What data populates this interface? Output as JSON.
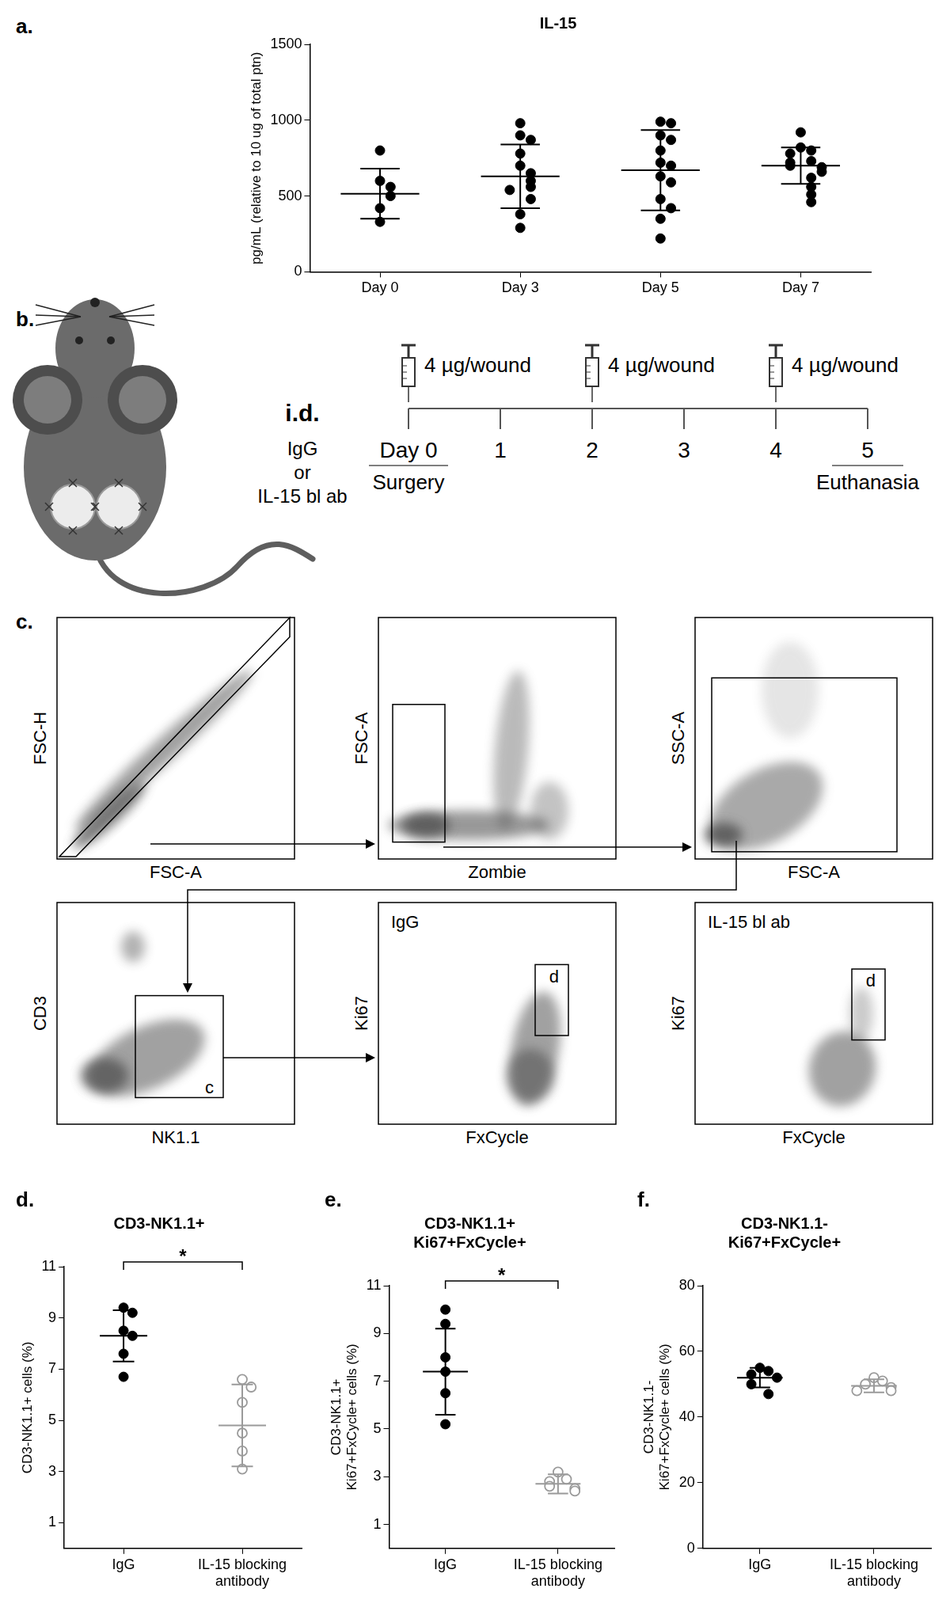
{
  "chart_data": [
    {
      "panel": "a.",
      "type": "scatter",
      "title": "IL-15",
      "y_label": "pg/mL (relative to 10 ug of total ptn)",
      "ylim": [
        0,
        1500
      ],
      "yticks": [
        0,
        500,
        1000,
        1500
      ],
      "grid": false,
      "series": [
        {
          "name": "Day 0",
          "color": "#000000",
          "marker": "circle",
          "values": [
            800,
            600,
            560,
            500,
            420,
            330
          ],
          "mean": 515,
          "sd": 165
        },
        {
          "name": "Day 3",
          "color": "#000000",
          "marker": "circle",
          "values": [
            980,
            900,
            870,
            780,
            700,
            650,
            600,
            560,
            540,
            480,
            380,
            290
          ],
          "mean": 630,
          "sd": 210
        },
        {
          "name": "Day 5",
          "color": "#000000",
          "marker": "circle",
          "values": [
            990,
            980,
            900,
            870,
            800,
            720,
            700,
            630,
            590,
            480,
            420,
            350,
            220
          ],
          "mean": 670,
          "sd": 265
        },
        {
          "name": "Day 7",
          "color": "#000000",
          "marker": "circle",
          "values": [
            920,
            820,
            800,
            780,
            730,
            720,
            700,
            690,
            660,
            620,
            560,
            510,
            460
          ],
          "mean": 700,
          "sd": 120
        }
      ]
    },
    {
      "panel": "d.",
      "type": "scatter",
      "title": "CD3-NK1.1+",
      "y_label": "CD3-NK1.1+ cells (%)",
      "ylim": [
        0,
        11
      ],
      "yticks": [
        1,
        3,
        5,
        7,
        9,
        11
      ],
      "grid": false,
      "significance": "*",
      "series": [
        {
          "name": "IgG",
          "color": "#000000",
          "marker": "circle",
          "values": [
            9.4,
            9.2,
            8.5,
            8.3,
            7.6,
            6.7
          ],
          "mean": 8.3,
          "sd": 1.0
        },
        {
          "name": "IL-15 blocking antibody",
          "color": "#9a9a9a",
          "marker": "open_circle",
          "values": [
            6.6,
            6.3,
            5.7,
            4.5,
            3.8,
            3.1
          ],
          "mean": 4.8,
          "sd": 1.6
        }
      ]
    },
    {
      "panel": "e.",
      "type": "scatter",
      "title": [
        "CD3-NK1.1+",
        "Ki67+FxCycle+"
      ],
      "y_label": [
        "CD3-NK1.1+",
        "Ki67+FxCycle+ cells (%)"
      ],
      "ylim": [
        0,
        11
      ],
      "yticks": [
        1,
        3,
        5,
        7,
        9,
        11
      ],
      "grid": false,
      "significance": "*",
      "series": [
        {
          "name": "IgG",
          "color": "#000000",
          "marker": "circle",
          "values": [
            10.0,
            9.4,
            8.0,
            7.4,
            6.5,
            5.2
          ],
          "mean": 7.4,
          "sd": 1.8
        },
        {
          "name": "IL-15 blocking antibody",
          "color": "#9a9a9a",
          "marker": "open_circle",
          "values": [
            3.2,
            2.9,
            2.8,
            2.6,
            2.5,
            2.4
          ],
          "mean": 2.7,
          "sd": 0.4
        }
      ]
    },
    {
      "panel": "f.",
      "type": "scatter",
      "title": [
        "CD3-NK1.1-",
        "Ki67+FxCycle+"
      ],
      "y_label": [
        "CD3-NK1.1-",
        "Ki67+FxCycle+ cells (%)"
      ],
      "ylim": [
        0,
        80
      ],
      "yticks": [
        0,
        20,
        40,
        60,
        80
      ],
      "grid": false,
      "series": [
        {
          "name": "IgG",
          "color": "#000000",
          "marker": "circle",
          "values": [
            55,
            54,
            53,
            52,
            50,
            47
          ],
          "mean": 52,
          "sd": 3
        },
        {
          "name": "IL-15 blocking antibody",
          "color": "#9a9a9a",
          "marker": "open_circle",
          "values": [
            52,
            51,
            50,
            49,
            48,
            48
          ],
          "mean": 49.5,
          "sd": 2
        }
      ]
    }
  ],
  "diagram": {
    "panel": "b.",
    "route": "i.d.",
    "treatments": [
      "IgG",
      "or",
      "IL-15 bl ab"
    ],
    "days": [
      "Day 0",
      "1",
      "2",
      "3",
      "4",
      "5"
    ],
    "injections": [
      {
        "at": 0,
        "label": "4 µg/wound"
      },
      {
        "at": 2,
        "label": "4 µg/wound"
      },
      {
        "at": 4,
        "label": "4 µg/wound"
      }
    ],
    "events": [
      {
        "at": 0,
        "label": "Surgery"
      },
      {
        "at": 5,
        "label": "Euthanasia"
      }
    ]
  },
  "flow": {
    "panel": "c.",
    "plots": [
      {
        "x_label": "FSC-A",
        "y_label": "FSC-H"
      },
      {
        "x_label": "Zombie",
        "y_label": "FSC-A"
      },
      {
        "x_label": "FSC-A",
        "y_label": "SSC-A"
      },
      {
        "x_label": "NK1.1",
        "y_label": "CD3",
        "gate_label": "c"
      },
      {
        "x_label": "FxCycle",
        "y_label": "Ki67",
        "title": "IgG",
        "gate_label": "d"
      },
      {
        "x_label": "FxCycle",
        "y_label": "Ki67",
        "title": "IL-15 bl ab",
        "gate_label": "d"
      }
    ]
  }
}
